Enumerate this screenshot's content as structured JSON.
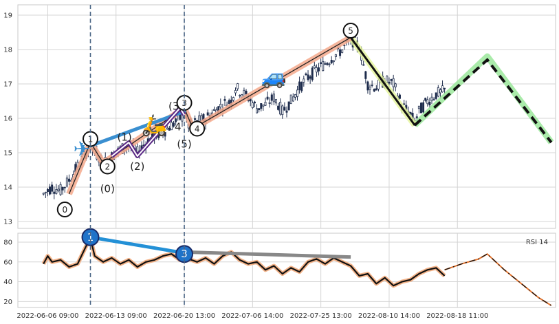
{
  "chart_data": {
    "type": "line",
    "panels": [
      {
        "id": "price",
        "chart_type": "candlestick",
        "ylim": [
          12.8,
          19.3
        ],
        "yticks": [
          13,
          14,
          15,
          16,
          17,
          18,
          19
        ],
        "grid": true
      },
      {
        "id": "rsi",
        "chart_type": "line",
        "legend_text": "RSI 14",
        "legend_position": "top-right",
        "ylim": [
          14,
          89
        ],
        "yticks": [
          20,
          40,
          60,
          80
        ],
        "grid": true
      }
    ],
    "x_tick_labels": [
      "2022-06-06 09:00",
      "2022-06-13 09:00",
      "2022-06-20 13:00",
      "2022-07-06 14:00",
      "2022-07-25 13:00",
      "2022-08-10 14:00",
      "2022-08-18 11:00"
    ],
    "x_ticks": [
      7,
      23,
      39,
      55,
      71,
      87,
      103
    ],
    "xlim": [
      0,
      126
    ],
    "vlines": [
      17,
      39
    ],
    "candle_anchors": [
      [
        6,
        13.8
      ],
      [
        8,
        14.0
      ],
      [
        10,
        13.9
      ],
      [
        12,
        14.2
      ],
      [
        14,
        14.6
      ],
      [
        16,
        15.0
      ],
      [
        17,
        15.2
      ],
      [
        18,
        15.0
      ],
      [
        19,
        14.9
      ],
      [
        20,
        14.7
      ],
      [
        22,
        14.9
      ],
      [
        24,
        15.1
      ],
      [
        26,
        15.2
      ],
      [
        28,
        15.0
      ],
      [
        30,
        15.3
      ],
      [
        32,
        15.5
      ],
      [
        34,
        15.6
      ],
      [
        36,
        15.8
      ],
      [
        38,
        16.0
      ],
      [
        39,
        16.1
      ],
      [
        40,
        15.8
      ],
      [
        42,
        15.9
      ],
      [
        44,
        16.0
      ],
      [
        46,
        16.2
      ],
      [
        48,
        16.4
      ],
      [
        50,
        16.5
      ],
      [
        51,
        16.9
      ],
      [
        52,
        16.8
      ],
      [
        54,
        16.6
      ],
      [
        56,
        16.3
      ],
      [
        58,
        16.4
      ],
      [
        60,
        16.6
      ],
      [
        62,
        16.2
      ],
      [
        64,
        16.5
      ],
      [
        66,
        16.9
      ],
      [
        68,
        17.2
      ],
      [
        70,
        17.4
      ],
      [
        72,
        17.6
      ],
      [
        74,
        17.8
      ],
      [
        76,
        18.0
      ],
      [
        78,
        18.3
      ],
      [
        80,
        18.1
      ],
      [
        82,
        17.0
      ],
      [
        84,
        16.9
      ],
      [
        86,
        17.1
      ],
      [
        88,
        17.0
      ],
      [
        90,
        16.4
      ],
      [
        92,
        16.1
      ],
      [
        93,
        15.9
      ],
      [
        94,
        16.2
      ],
      [
        96,
        16.5
      ],
      [
        98,
        16.7
      ],
      [
        100,
        16.8
      ]
    ],
    "rsi_anchors": [
      [
        6,
        58
      ],
      [
        7,
        66
      ],
      [
        8,
        60
      ],
      [
        10,
        62
      ],
      [
        12,
        55
      ],
      [
        14,
        58
      ],
      [
        16,
        76
      ],
      [
        17,
        84
      ],
      [
        18,
        66
      ],
      [
        20,
        60
      ],
      [
        22,
        64
      ],
      [
        24,
        58
      ],
      [
        26,
        62
      ],
      [
        28,
        55
      ],
      [
        30,
        60
      ],
      [
        32,
        62
      ],
      [
        34,
        66
      ],
      [
        36,
        68
      ],
      [
        38,
        62
      ],
      [
        39,
        67
      ],
      [
        40,
        63
      ],
      [
        42,
        60
      ],
      [
        44,
        64
      ],
      [
        46,
        58
      ],
      [
        48,
        66
      ],
      [
        50,
        70
      ],
      [
        52,
        62
      ],
      [
        54,
        58
      ],
      [
        56,
        60
      ],
      [
        58,
        52
      ],
      [
        60,
        56
      ],
      [
        62,
        48
      ],
      [
        64,
        54
      ],
      [
        66,
        50
      ],
      [
        68,
        60
      ],
      [
        70,
        63
      ],
      [
        72,
        58
      ],
      [
        74,
        64
      ],
      [
        76,
        60
      ],
      [
        78,
        56
      ],
      [
        80,
        46
      ],
      [
        82,
        48
      ],
      [
        84,
        38
      ],
      [
        86,
        44
      ],
      [
        88,
        36
      ],
      [
        90,
        40
      ],
      [
        92,
        42
      ],
      [
        94,
        48
      ],
      [
        96,
        52
      ],
      [
        98,
        54
      ],
      [
        100,
        46
      ]
    ],
    "projection_rsi": [
      [
        100,
        52
      ],
      [
        104,
        58
      ],
      [
        108,
        63
      ],
      [
        110,
        68
      ],
      [
        114,
        52
      ],
      [
        118,
        38
      ],
      [
        122,
        24
      ],
      [
        125,
        16
      ]
    ],
    "wave_main": [
      [
        12,
        13.8
      ],
      [
        17,
        15.3
      ],
      [
        20,
        14.7
      ],
      [
        39,
        16.3
      ],
      [
        41,
        15.7
      ],
      [
        78,
        18.35
      ]
    ],
    "wave_sub_blue": [
      [
        17,
        15.2
      ],
      [
        39,
        16.2
      ]
    ],
    "wave_sub_purple": [
      [
        22,
        14.9
      ],
      [
        26,
        15.3
      ],
      [
        28,
        14.9
      ],
      [
        38,
        16.3
      ],
      [
        39,
        16.1
      ]
    ],
    "projection_black_solid": [
      [
        78,
        18.35
      ],
      [
        93,
        15.8
      ]
    ],
    "projection_black_dashed": [
      [
        93,
        15.8
      ],
      [
        110,
        17.7
      ],
      [
        125,
        15.3
      ]
    ],
    "projection_green": [
      [
        93,
        15.8
      ],
      [
        110,
        17.8
      ],
      [
        125,
        15.3
      ]
    ],
    "rsi_blue_line": [
      [
        17,
        85
      ],
      [
        39,
        69
      ]
    ],
    "rsi_grey_line": [
      [
        39,
        70
      ],
      [
        78,
        65
      ]
    ],
    "wave_labels": [
      {
        "text": "0",
        "x": 11,
        "y": 13.35,
        "circled": true
      },
      {
        "text": "1",
        "x": 17,
        "y": 15.4,
        "circled": true
      },
      {
        "text": "2",
        "x": 21,
        "y": 14.6,
        "circled": true
      },
      {
        "text": "(0)",
        "x": 21,
        "y": 13.95,
        "circled": false
      },
      {
        "text": "(1)",
        "x": 25,
        "y": 15.45,
        "circled": false
      },
      {
        "text": "(2)",
        "x": 28,
        "y": 14.6,
        "circled": false
      },
      {
        "text": "(3)",
        "x": 37,
        "y": 16.35,
        "circled": false
      },
      {
        "text": "3",
        "x": 39,
        "y": 16.45,
        "circled": true
      },
      {
        "text": "4",
        "x": 37.5,
        "y": 15.75,
        "circled": false
      },
      {
        "text": "4",
        "x": 42,
        "y": 15.7,
        "circled": true
      },
      {
        "text": "(5)",
        "x": 39,
        "y": 15.25,
        "circled": false
      },
      {
        "text": "5",
        "x": 78,
        "y": 18.55,
        "circled": true
      }
    ],
    "rsi_markers": [
      {
        "text": "1",
        "x": 17,
        "y": 85
      },
      {
        "text": "3",
        "x": 39,
        "y": 68
      }
    ],
    "emoji_markers": [
      {
        "glyph": "✈",
        "x": 15,
        "y": 15.1,
        "name": "airplane-icon"
      },
      {
        "glyph": "🛵",
        "x": 32,
        "y": 15.8,
        "name": "scooter-icon"
      },
      {
        "glyph": "🚙",
        "x": 60,
        "y": 17.2,
        "name": "car-icon"
      }
    ],
    "colors": {
      "candle": "#1f2d4d",
      "grid": "#d4d4d4",
      "frame": "#c8c8c8",
      "wave_main": "#f5a98c",
      "wave_blue": "#3a8fd0",
      "wave_purple": "#5b2a86",
      "projection_green": "#9be89b",
      "projection_black": "#111111",
      "rsi_line": "#111111",
      "rsi_halo": "#f3b389",
      "projection_rsi": "#e8742c",
      "rsi_blue": "#2390d6",
      "rsi_grey": "#888888",
      "marker_fill": "#1f73c9",
      "vline": "#4a6585"
    }
  }
}
